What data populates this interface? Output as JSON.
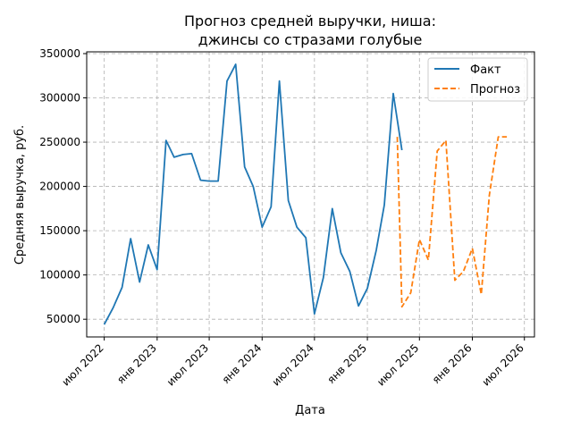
{
  "chart_data": {
    "type": "line",
    "title": [
      "Прогноз средней выручки, ниша:",
      "джинсы со стразами голубые"
    ],
    "xlabel": "Дата",
    "ylabel": "Средняя выручка, руб.",
    "xlim": [
      "2022-05-01",
      "2026-08-05"
    ],
    "ylim": [
      30000,
      352000
    ],
    "grid": true,
    "legend_position": "top-right",
    "x_ticks": [
      {
        "date": "2022-07-01",
        "label": "июл 2022"
      },
      {
        "date": "2023-01-01",
        "label": "янв 2023"
      },
      {
        "date": "2023-07-01",
        "label": "июл 2023"
      },
      {
        "date": "2024-01-01",
        "label": "янв 2024"
      },
      {
        "date": "2024-07-01",
        "label": "июл 2024"
      },
      {
        "date": "2025-01-01",
        "label": "янв 2025"
      },
      {
        "date": "2025-07-01",
        "label": "июл 2025"
      },
      {
        "date": "2026-01-01",
        "label": "янв 2026"
      },
      {
        "date": "2026-07-01",
        "label": "июл 2026"
      }
    ],
    "y_ticks": [
      {
        "value": 50000,
        "label": "50000"
      },
      {
        "value": 100000,
        "label": "100000"
      },
      {
        "value": 150000,
        "label": "150000"
      },
      {
        "value": 200000,
        "label": "200000"
      },
      {
        "value": 250000,
        "label": "250000"
      },
      {
        "value": 300000,
        "label": "300000"
      },
      {
        "value": 350000,
        "label": "350000"
      }
    ],
    "series": [
      {
        "name": "Факт",
        "color": "#1f77b4",
        "style": "solid",
        "x": [
          "2022-07-01",
          "2022-08-01",
          "2022-09-01",
          "2022-10-01",
          "2022-11-01",
          "2022-12-01",
          "2023-01-01",
          "2023-02-01",
          "2023-03-01",
          "2023-04-01",
          "2023-05-01",
          "2023-06-01",
          "2023-07-01",
          "2023-08-01",
          "2023-09-01",
          "2023-10-01",
          "2023-11-01",
          "2023-12-01",
          "2024-01-01",
          "2024-02-01",
          "2024-03-01",
          "2024-04-01",
          "2024-05-01",
          "2024-06-01",
          "2024-07-01",
          "2024-08-01",
          "2024-09-01",
          "2024-10-01",
          "2024-11-01",
          "2024-12-01",
          "2025-01-01",
          "2025-02-01",
          "2025-03-01",
          "2025-04-01",
          "2025-05-01"
        ],
        "y": [
          44000,
          63000,
          86000,
          141000,
          92000,
          134000,
          106000,
          252000,
          233000,
          236000,
          237000,
          207000,
          206000,
          206000,
          319000,
          338000,
          222000,
          200000,
          154000,
          177000,
          319000,
          184000,
          154000,
          142000,
          56000,
          97000,
          175000,
          125000,
          104000,
          65000,
          85000,
          128000,
          179000,
          305000,
          241000
        ]
      },
      {
        "name": "Прогноз",
        "color": "#ff7f0e",
        "style": "dashed",
        "x": [
          "2025-04-15",
          "2025-05-01",
          "2025-06-01",
          "2025-07-01",
          "2025-08-01",
          "2025-09-01",
          "2025-10-01",
          "2025-11-01",
          "2025-12-01",
          "2026-01-01",
          "2026-02-01",
          "2026-03-01",
          "2026-04-01",
          "2026-05-01"
        ],
        "y": [
          256000,
          64000,
          80000,
          140000,
          117000,
          240000,
          252000,
          94000,
          104000,
          130000,
          78000,
          190000,
          256000,
          256000
        ]
      }
    ]
  }
}
